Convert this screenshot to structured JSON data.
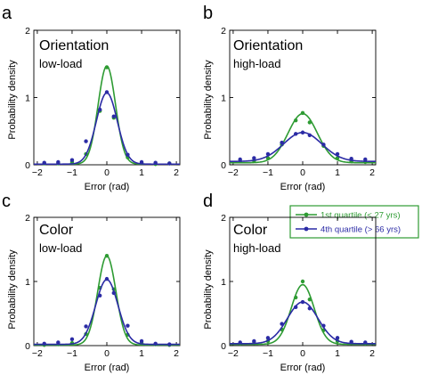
{
  "colors": {
    "green": "#2e9b33",
    "blue": "#2b2ba5",
    "axis": "#000000"
  },
  "legend": {
    "entries": [
      "1st quartile (< 27 yrs)",
      "4th quartile (> 66 yrs)"
    ],
    "placement": "panel-d-top"
  },
  "chart_data": [
    {
      "type": "line",
      "panel_letter": "a",
      "title": "Orientation",
      "subtitle": "low-load",
      "xlabel": "Error (rad)",
      "ylabel": "Probability density",
      "xlim": [
        -2.1,
        2.1
      ],
      "ylim": [
        0,
        2
      ],
      "xticks": [
        -2,
        -1,
        0,
        1,
        2
      ],
      "xtick_labels": [
        "−2",
        "−1",
        "0",
        "1",
        "2"
      ],
      "yticks": [
        0,
        1,
        2
      ],
      "ytick_labels": [
        "0",
        "1",
        "2"
      ],
      "series": [
        {
          "name": "1st quartile (< 27 yrs)",
          "color": "#2e9b33",
          "fit": {
            "peak": 1.47,
            "width": 0.25,
            "base": 0.01
          },
          "points": {
            "x": [
              -1.8,
              -1.4,
              -1.0,
              -0.6,
              -0.2,
              0.0,
              0.2,
              0.6,
              1.0,
              1.4,
              1.8
            ],
            "y": [
              0.02,
              0.02,
              0.04,
              0.16,
              0.8,
              1.45,
              0.7,
              0.11,
              0.03,
              0.01,
              0.02
            ]
          }
        },
        {
          "name": "4th quartile (> 66 yrs)",
          "color": "#2b2ba5",
          "fit": {
            "peak": 1.07,
            "width": 0.3,
            "base": 0.01
          },
          "points": {
            "x": [
              -1.8,
              -1.4,
              -1.0,
              -0.6,
              -0.2,
              0.0,
              0.2,
              0.6,
              1.0,
              1.4,
              1.8
            ],
            "y": [
              0.03,
              0.04,
              0.07,
              0.35,
              0.82,
              1.08,
              0.72,
              0.15,
              0.04,
              0.03,
              0.02
            ]
          }
        }
      ]
    },
    {
      "type": "line",
      "panel_letter": "b",
      "title": "Orientation",
      "subtitle": "high-load",
      "xlabel": "Error (rad)",
      "ylabel": "Probability density",
      "xlim": [
        -2.1,
        2.1
      ],
      "ylim": [
        0,
        2
      ],
      "xticks": [
        -2,
        -1,
        0,
        1,
        2
      ],
      "xtick_labels": [
        "−2",
        "−1",
        "0",
        "1",
        "2"
      ],
      "yticks": [
        0,
        1,
        2
      ],
      "ytick_labels": [
        "0",
        "1",
        "2"
      ],
      "series": [
        {
          "name": "1st quartile (< 27 yrs)",
          "color": "#2e9b33",
          "fit": {
            "peak": 0.76,
            "width": 0.42,
            "base": 0.03
          },
          "points": {
            "x": [
              -1.8,
              -1.4,
              -1.0,
              -0.6,
              -0.2,
              0.0,
              0.2,
              0.6,
              1.0,
              1.4,
              1.8
            ],
            "y": [
              0.05,
              0.06,
              0.1,
              0.3,
              0.66,
              0.77,
              0.63,
              0.28,
              0.1,
              0.05,
              0.04
            ]
          }
        },
        {
          "name": "4th quartile (> 66 yrs)",
          "color": "#2b2ba5",
          "fit": {
            "peak": 0.48,
            "width": 0.55,
            "base": 0.05
          },
          "points": {
            "x": [
              -1.8,
              -1.4,
              -1.0,
              -0.6,
              -0.2,
              0.0,
              0.2,
              0.6,
              1.0,
              1.4,
              1.8
            ],
            "y": [
              0.08,
              0.1,
              0.16,
              0.33,
              0.46,
              0.48,
              0.44,
              0.3,
              0.16,
              0.09,
              0.08
            ]
          }
        }
      ]
    },
    {
      "type": "line",
      "panel_letter": "c",
      "title": "Color",
      "subtitle": "low-load",
      "xlabel": "Error (rad)",
      "ylabel": "Probability density",
      "xlim": [
        -2.1,
        2.1
      ],
      "ylim": [
        0,
        2
      ],
      "xticks": [
        -2,
        -1,
        0,
        1,
        2
      ],
      "xtick_labels": [
        "−2",
        "−1",
        "0",
        "1",
        "2"
      ],
      "yticks": [
        0,
        1,
        2
      ],
      "ytick_labels": [
        "0",
        "1",
        "2"
      ],
      "series": [
        {
          "name": "1st quartile (< 27 yrs)",
          "color": "#2e9b33",
          "fit": {
            "peak": 1.4,
            "width": 0.26,
            "base": 0.01
          },
          "points": {
            "x": [
              -1.8,
              -1.4,
              -1.0,
              -0.6,
              -0.2,
              0.0,
              0.2,
              0.6,
              1.0,
              1.4,
              1.8
            ],
            "y": [
              0.01,
              0.02,
              0.04,
              0.18,
              0.9,
              1.4,
              0.88,
              0.17,
              0.04,
              0.02,
              0.01
            ]
          }
        },
        {
          "name": "4th quartile (> 66 yrs)",
          "color": "#2b2ba5",
          "fit": {
            "peak": 1.03,
            "width": 0.32,
            "base": 0.02
          },
          "points": {
            "x": [
              -1.8,
              -1.4,
              -1.0,
              -0.6,
              -0.2,
              0.0,
              0.2,
              0.6,
              1.0,
              1.4,
              1.8
            ],
            "y": [
              0.03,
              0.05,
              0.1,
              0.3,
              0.78,
              1.04,
              0.82,
              0.31,
              0.07,
              0.03,
              0.02
            ]
          }
        }
      ]
    },
    {
      "type": "line",
      "panel_letter": "d",
      "title": "Color",
      "subtitle": "high-load",
      "xlabel": "Error (rad)",
      "ylabel": "Probability density",
      "xlim": [
        -2.1,
        2.1
      ],
      "ylim": [
        0,
        2
      ],
      "xticks": [
        -2,
        -1,
        0,
        1,
        2
      ],
      "xtick_labels": [
        "−2",
        "−1",
        "0",
        "1",
        "2"
      ],
      "yticks": [
        0,
        1,
        2
      ],
      "ytick_labels": [
        "0",
        "1",
        "2"
      ],
      "series": [
        {
          "name": "1st quartile (< 27 yrs)",
          "color": "#2e9b33",
          "fit": {
            "peak": 0.95,
            "width": 0.33,
            "base": 0.02
          },
          "points": {
            "x": [
              -1.8,
              -1.4,
              -1.0,
              -0.6,
              -0.2,
              0.0,
              0.2,
              0.6,
              1.0,
              1.4,
              1.8
            ],
            "y": [
              0.03,
              0.04,
              0.07,
              0.25,
              0.75,
              1.0,
              0.72,
              0.24,
              0.07,
              0.04,
              0.03
            ]
          }
        },
        {
          "name": "4th quartile (> 66 yrs)",
          "color": "#2b2ba5",
          "fit": {
            "peak": 0.68,
            "width": 0.44,
            "base": 0.03
          },
          "points": {
            "x": [
              -1.8,
              -1.4,
              -1.0,
              -0.6,
              -0.2,
              0.0,
              0.2,
              0.6,
              1.0,
              1.4,
              1.8
            ],
            "y": [
              0.05,
              0.07,
              0.12,
              0.34,
              0.6,
              0.68,
              0.58,
              0.31,
              0.12,
              0.06,
              0.05
            ]
          }
        }
      ]
    }
  ]
}
